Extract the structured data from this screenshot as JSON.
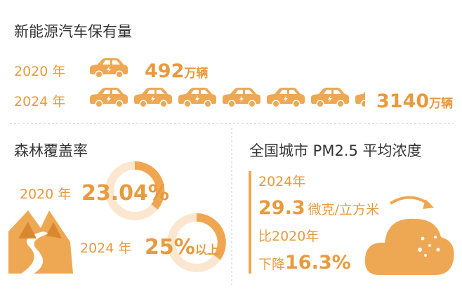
{
  "ev": {
    "title": "新能源汽车保有量",
    "rows": [
      {
        "year": "2020 年",
        "value": "492",
        "unit": "万辆"
      },
      {
        "year": "2024 年",
        "value": "3140",
        "unit": "万辆"
      }
    ]
  },
  "forest": {
    "title": "森林覆盖率",
    "rows": [
      {
        "year": "2020 年",
        "value": "23.04%"
      },
      {
        "year": "2024 年",
        "value": "25%",
        "suffix": "以上"
      }
    ]
  },
  "pm": {
    "title": "全国城市 PM2.5 平均浓度",
    "year": "2024年",
    "value": "29.3",
    "unit": "微克/立方米",
    "compare": "比2020年",
    "change_label": "下降",
    "change": "16.3%"
  }
}
